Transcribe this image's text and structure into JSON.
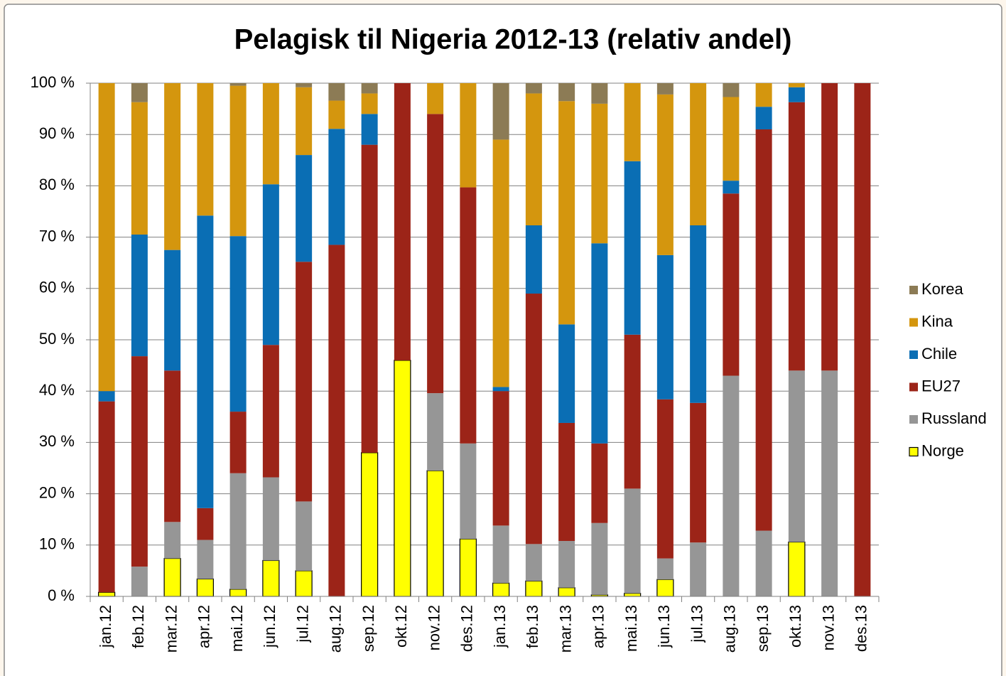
{
  "chart_data": {
    "type": "stacked_bar",
    "title": "Pelagisk til Nigeria 2012-13 (relativ andel)",
    "categories": [
      "jan.12",
      "feb.12",
      "mar.12",
      "apr.12",
      "mai.12",
      "jun.12",
      "jul.12",
      "aug.12",
      "sep.12",
      "okt.12",
      "nov.12",
      "des.12",
      "jan.13",
      "feb.13",
      "mar.13",
      "apr.13",
      "mai.13",
      "jun.13",
      "jul.13",
      "aug.13",
      "sep.13",
      "okt.13",
      "nov.13",
      "des.13"
    ],
    "series": [
      {
        "name": "Norge",
        "color": "#ffff00",
        "values": [
          0.8,
          0,
          7.4,
          3.4,
          1.4,
          7,
          5,
          0,
          28,
          46,
          24.5,
          11.2,
          2.6,
          3,
          1.7,
          0.3,
          0.6,
          3.3,
          0,
          0,
          0,
          10.6,
          0,
          0
        ]
      },
      {
        "name": "Russland",
        "color": "#969696",
        "values": [
          0,
          5.8,
          7.1,
          7.6,
          22.6,
          16.2,
          13.5,
          0,
          0,
          0,
          15.1,
          18.6,
          11.2,
          7.2,
          9.1,
          14,
          20.4,
          4.1,
          10.5,
          43,
          12.8,
          33.4,
          44,
          0
        ]
      },
      {
        "name": "EU27",
        "color": "#9c2418",
        "values": [
          37.2,
          41,
          29.5,
          6.2,
          12,
          25.8,
          46.7,
          68.5,
          60,
          54,
          54.4,
          49.9,
          26.2,
          48.8,
          23,
          15.5,
          30,
          31,
          27.2,
          35.5,
          78.2,
          52.3,
          56,
          100
        ]
      },
      {
        "name": "Chile",
        "color": "#0a6eb4",
        "values": [
          2,
          23.7,
          23.5,
          57,
          34.2,
          31.3,
          20.8,
          22.6,
          6,
          0,
          0,
          0,
          0.8,
          13.3,
          19.2,
          39,
          33.8,
          28.1,
          34.6,
          2.5,
          4.4,
          2.9,
          0,
          0
        ]
      },
      {
        "name": "Kina",
        "color": "#d4960e",
        "values": [
          60,
          25.8,
          32.5,
          25.8,
          29.3,
          19.7,
          13.2,
          5.5,
          4,
          0,
          6,
          20.3,
          48.2,
          25.7,
          43.5,
          27.2,
          15.2,
          31.3,
          27.7,
          16.3,
          4.6,
          0.8,
          0,
          0
        ]
      },
      {
        "name": "Korea",
        "color": "#8c7b55",
        "values": [
          0,
          3.7,
          0,
          0,
          0.5,
          0,
          0.8,
          3.4,
          2,
          0,
          0,
          0,
          11,
          2,
          3.5,
          4,
          0,
          2.2,
          0,
          2.7,
          0,
          0,
          0,
          0
        ]
      }
    ],
    "ylim": [
      0,
      100
    ],
    "yticks": [
      {
        "value": 0,
        "label": "0 %"
      },
      {
        "value": 10,
        "label": "10 %"
      },
      {
        "value": 20,
        "label": "20 %"
      },
      {
        "value": 30,
        "label": "30 %"
      },
      {
        "value": 40,
        "label": "40 %"
      },
      {
        "value": 50,
        "label": "50 %"
      },
      {
        "value": 60,
        "label": "60 %"
      },
      {
        "value": 70,
        "label": "70 %"
      },
      {
        "value": 80,
        "label": "80 %"
      },
      {
        "value": 90,
        "label": "90 %"
      },
      {
        "value": 100,
        "label": "100 %"
      }
    ],
    "grid": true,
    "legend": "right"
  }
}
